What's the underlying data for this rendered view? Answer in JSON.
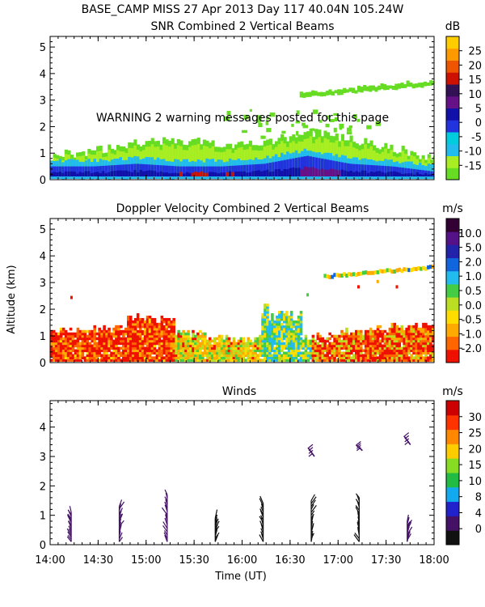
{
  "header": {
    "line1": "BASE_CAMP MISS  27 Apr 2013 Day 117 40.04N 105.24W"
  },
  "x_axis": {
    "label": "Time (UT)",
    "ticks": [
      "14:00",
      "14:30",
      "15:00",
      "15:30",
      "16:00",
      "16:30",
      "17:00",
      "17:30",
      "18:00"
    ],
    "range_hours": [
      14,
      18
    ]
  },
  "shared_ylabel": "Altitude (km)",
  "chart_data": [
    {
      "type": "heatmap",
      "title": "SNR Combined 2 Vertical Beams",
      "units": "dB",
      "warning": "WARNING  2 warning messages posted for this page",
      "y_ticks": [
        "0",
        "1",
        "2",
        "3",
        "4",
        "5"
      ],
      "ylim": [
        0,
        5.4
      ],
      "colorbar": {
        "labels": [
          "-15",
          "-10",
          "-5",
          "0",
          "5",
          "10",
          "15",
          "20",
          "25"
        ],
        "colors": [
          "#66dd22",
          "#a8ee22",
          "#22bbee",
          "#00ccdd",
          "#2233dd",
          "#1111aa",
          "#661188",
          "#331155",
          "#cc1100",
          "#ee5500",
          "#ff9900",
          "#ffcc00"
        ]
      },
      "regions": [
        {
          "desc": "low layer",
          "t_start": 14.0,
          "t_end": 18.0,
          "top_km": [
            0.9,
            1.1,
            1.4,
            1.5,
            1.3,
            1.4,
            1.8,
            1.5,
            1.2,
            0.8
          ],
          "class": "-15"
        },
        {
          "desc": "surface layer",
          "t_start": 14.0,
          "t_end": 18.0,
          "top_km": [
            0.5,
            0.5,
            0.6,
            0.5,
            0.5,
            0.6,
            0.9,
            0.6,
            0.5,
            0.3
          ],
          "class": "0"
        },
        {
          "desc": "upper layer",
          "t_start": 16.6,
          "t_end": 18.0,
          "base_km": 3.1,
          "top_km": 3.8,
          "class": "-15"
        }
      ]
    },
    {
      "type": "heatmap",
      "title": "Doppler Velocity Combined 2 Vertical Beams",
      "units": "m/s",
      "y_ticks": [
        "0",
        "1",
        "2",
        "3",
        "4",
        "5"
      ],
      "ylim": [
        0,
        5.4
      ],
      "colorbar": {
        "labels": [
          "-2.0",
          "-1.0",
          "-0.5",
          "0.0",
          "0.5",
          "1.0",
          "2.0",
          "5.0",
          "10.0"
        ],
        "colors": [
          "#ee1100",
          "#ff6600",
          "#ffaa00",
          "#ffdd00",
          "#bbdd22",
          "#44cc44",
          "#22bbee",
          "#1166dd",
          "#2222aa",
          "#551188",
          "#330033"
        ]
      },
      "regions": [
        {
          "desc": "boundary layer",
          "t_start": 14.0,
          "t_end": 18.0,
          "class": "-1.0"
        },
        {
          "desc": "convective plume",
          "t_start": 16.2,
          "t_end": 16.6,
          "class": "0.5"
        },
        {
          "desc": "upper layer",
          "t_start": 16.8,
          "t_end": 18.0,
          "base_km": 3.1,
          "top_km": 3.7,
          "class": "0.0"
        }
      ]
    },
    {
      "type": "scatter",
      "title": "Winds",
      "units": "m/s",
      "y_ticks": [
        "0",
        "1",
        "2",
        "3",
        "4"
      ],
      "ylim": [
        0,
        4.9
      ],
      "colorbar": {
        "labels": [
          "0",
          "4",
          "8",
          "10",
          "15",
          "20",
          "25",
          "30"
        ],
        "colors": [
          "#111111",
          "#441166",
          "#2222cc",
          "#11aaee",
          "#22bb44",
          "#88dd22",
          "#ffcc00",
          "#ff8800",
          "#ff3300",
          "#cc0000"
        ]
      },
      "profiles": [
        {
          "time": "14:13",
          "t_hours": 14.22,
          "alt_km": [
            0.1,
            1.1
          ],
          "speed_class": "4"
        },
        {
          "time": "14:43",
          "t_hours": 14.72,
          "alt_km": [
            0.1,
            1.3
          ],
          "speed_class": "4"
        },
        {
          "time": "15:13",
          "t_hours": 15.22,
          "alt_km": [
            0.1,
            1.7
          ],
          "speed_class": "4"
        },
        {
          "time": "15:43",
          "t_hours": 15.72,
          "alt_km": [
            0.1,
            0.9
          ],
          "speed_class": "0"
        },
        {
          "time": "16:13",
          "t_hours": 16.22,
          "alt_km": [
            0.1,
            1.4
          ],
          "speed_class": "0"
        },
        {
          "time": "16:43",
          "t_hours": 16.72,
          "alt_km": [
            0.1,
            1.5
          ],
          "speed_class": "0",
          "upper_alt_km": [
            3.0,
            3.3
          ],
          "upper_speed_class": "4"
        },
        {
          "time": "17:13",
          "t_hours": 17.22,
          "alt_km": [
            0.1,
            1.6
          ],
          "speed_class": "0",
          "upper_alt_km": [
            3.2,
            3.4
          ],
          "upper_speed_class": "4"
        },
        {
          "time": "17:43",
          "t_hours": 17.72,
          "alt_km": [
            0.1,
            0.8
          ],
          "speed_class": "4",
          "upper_alt_km": [
            3.4,
            3.7
          ],
          "upper_speed_class": "4"
        }
      ]
    }
  ]
}
